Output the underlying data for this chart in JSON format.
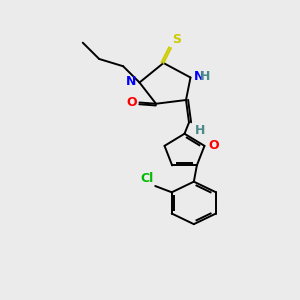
{
  "background_color": "#ebebeb",
  "atom_colors": {
    "N": "#0000ff",
    "O": "#ff0000",
    "S": "#cccc00",
    "Cl": "#00bb00",
    "H": "#4a8a8a"
  },
  "lw": 1.4,
  "xlim": [
    0,
    10
  ],
  "ylim": [
    0,
    12
  ]
}
